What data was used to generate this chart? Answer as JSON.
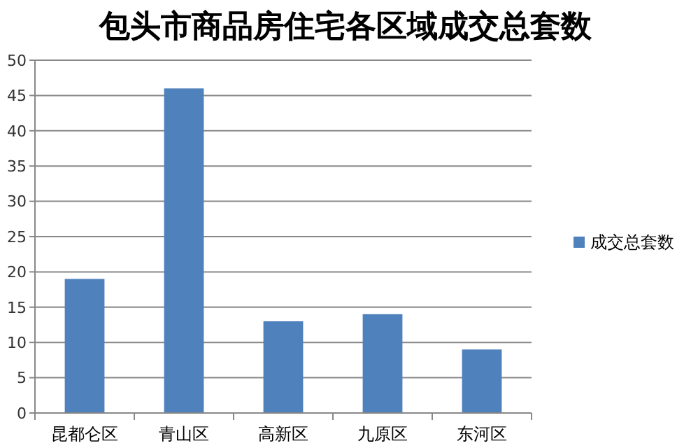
{
  "chart_data": {
    "type": "bar",
    "title": "包头市商品房住宅各区域成交总套数",
    "categories": [
      "昆都仑区",
      "青山区",
      "高新区",
      "九原区",
      "东河区"
    ],
    "series": [
      {
        "name": "成交总套数",
        "color": "#4f81bd",
        "values": [
          19,
          46,
          13,
          14,
          9
        ]
      }
    ],
    "ylim": [
      0,
      50
    ],
    "yticks": [
      0,
      5,
      10,
      15,
      20,
      25,
      30,
      35,
      40,
      45,
      50
    ],
    "grid": "y",
    "legend": "right"
  }
}
